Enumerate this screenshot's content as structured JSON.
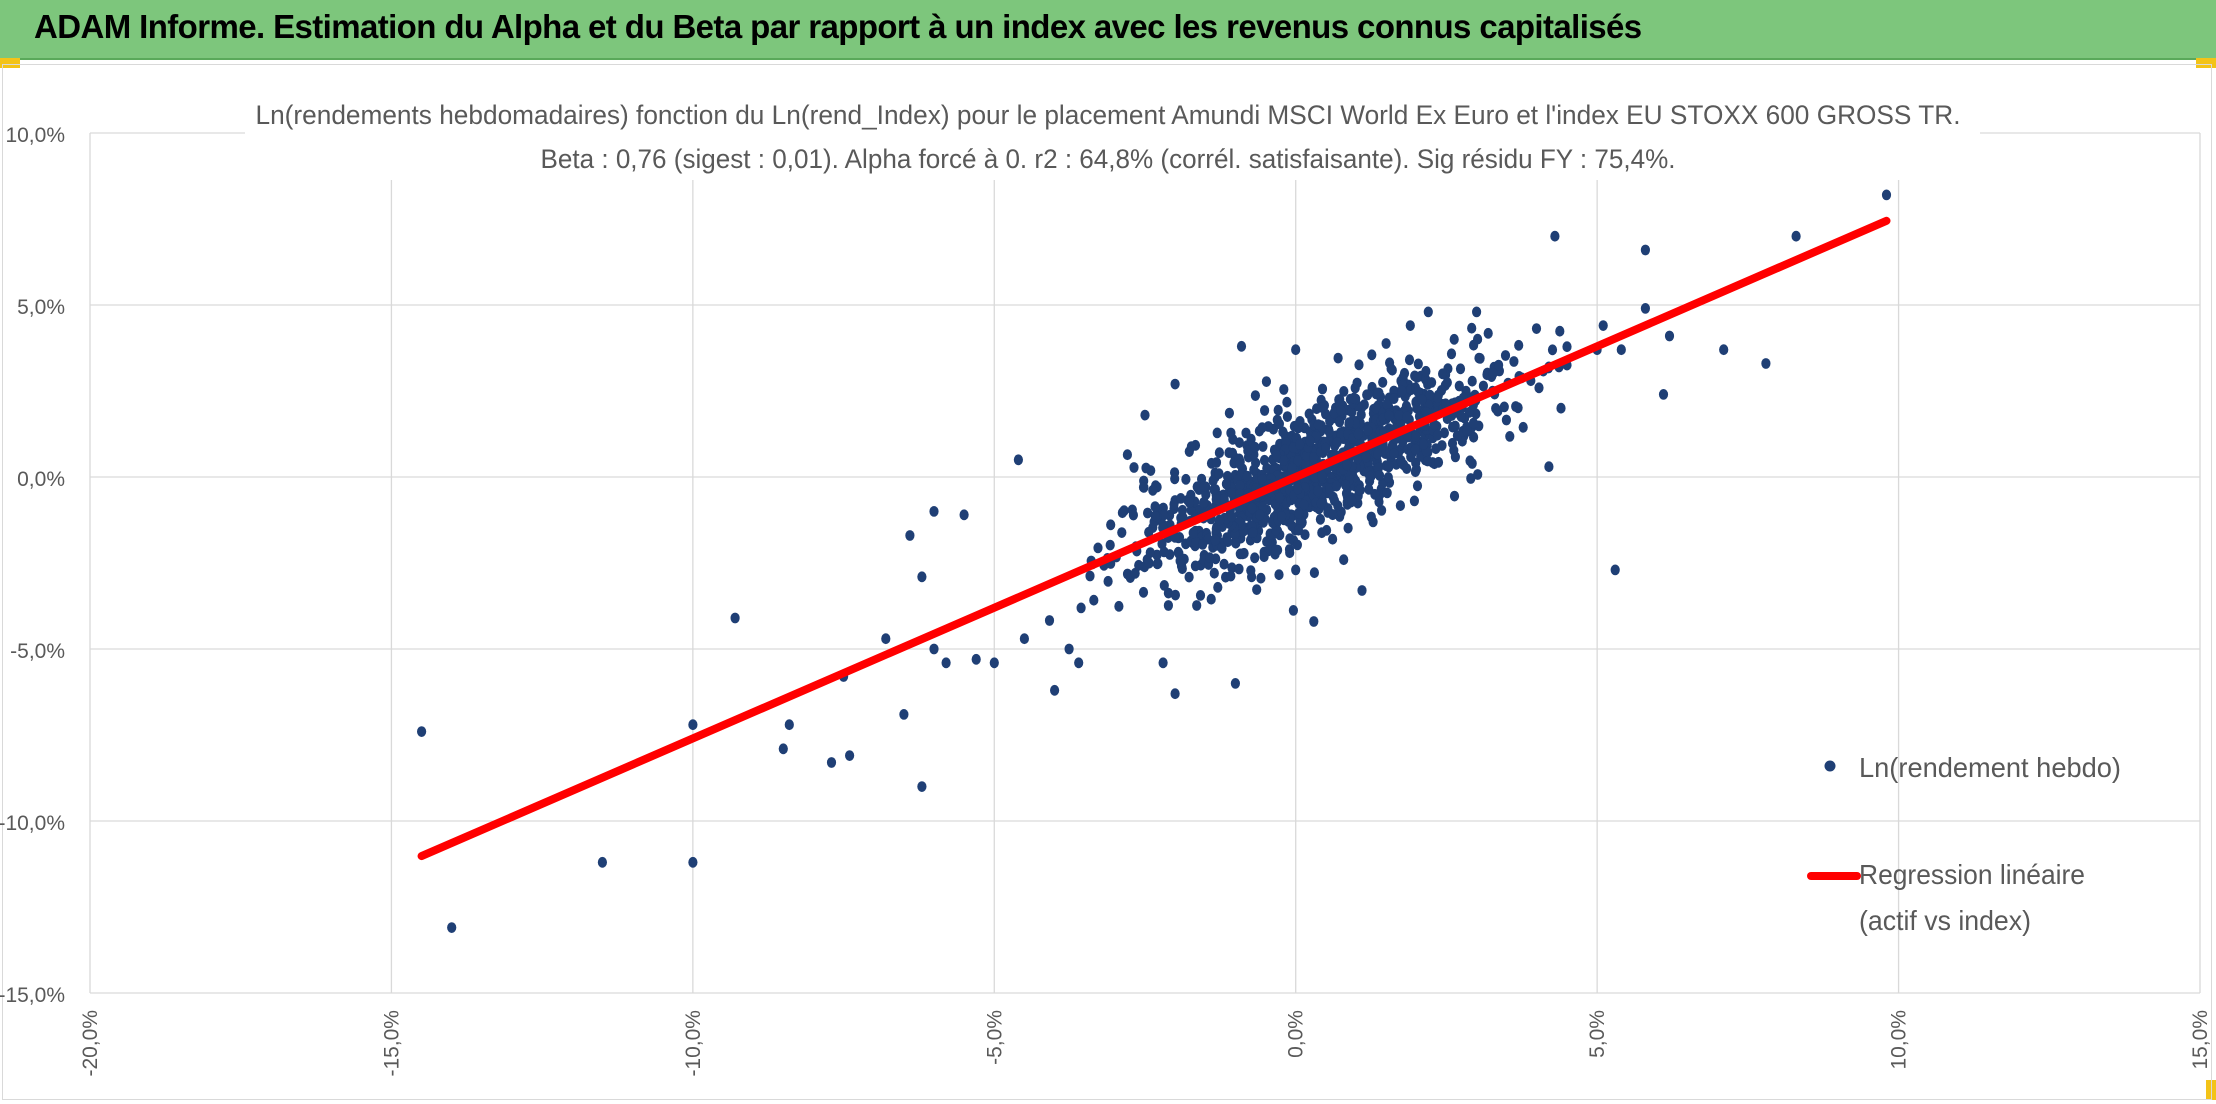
{
  "banner": {
    "title": "ADAM Informe. Estimation du Alpha et du Beta par rapport à un index avec les revenus connus capitalisés"
  },
  "colors": {
    "banner_bg": "#7dc67c",
    "handle": "#f3c318",
    "points": "#1f3f75",
    "regression": "#ff0000",
    "grid": "#d9d9d9"
  },
  "chart_data": {
    "type": "scatter",
    "title": "Ln(rendements hebdomadaires) fonction du Ln(rend_Index) pour le placement Amundi MSCI World Ex Euro et l'index EU STOXX 600 GROSS TR.",
    "subtitle": "Beta : 0,76 (sigest : 0,01). Alpha forcé à 0. r2 : 64,8% (corrél. satisfaisante). Sig résidu FY : 75,4%.",
    "x_axis": {
      "range": [
        -0.2,
        0.15
      ],
      "ticks": [
        -0.2,
        -0.15,
        -0.1,
        -0.05,
        0.0,
        0.05,
        0.1,
        0.15
      ],
      "tick_labels": [
        "-20,0%",
        "-15,0%",
        "-10,0%",
        "-5,0%",
        "0,0%",
        "5,0%",
        "10,0%",
        "15,0%"
      ],
      "grid": true
    },
    "y_axis": {
      "range": [
        -0.15,
        0.1
      ],
      "ticks": [
        0.1,
        0.05,
        0.0,
        -0.05,
        -0.1,
        -0.15
      ],
      "tick_labels": [
        "10,0%",
        "5,0%",
        "0,0%",
        "-5,0%",
        "-10,0%",
        "-15,0%"
      ],
      "grid": true
    },
    "legend": {
      "position": "right",
      "items": [
        {
          "label": "Ln(rendement hebdo)",
          "kind": "marker"
        },
        {
          "label_line1": "Regression linéaire",
          "label_line2": "(actif vs index)",
          "kind": "line"
        }
      ]
    },
    "regression": {
      "beta": 0.76,
      "alpha": 0,
      "x_range": [
        -0.145,
        0.098
      ]
    },
    "series": [
      {
        "name": "Ln(rendement hebdo)",
        "points": [
          [
            0.098,
            0.082
          ],
          [
            0.083,
            0.07
          ],
          [
            0.078,
            0.033
          ],
          [
            0.071,
            0.037
          ],
          [
            0.062,
            0.041
          ],
          [
            0.061,
            0.024
          ],
          [
            0.058,
            0.066
          ],
          [
            0.058,
            0.049
          ],
          [
            0.054,
            0.037
          ],
          [
            0.053,
            -0.027
          ],
          [
            0.051,
            0.044
          ],
          [
            0.05,
            0.037
          ],
          [
            0.043,
            0.07
          ],
          [
            0.042,
            0.032
          ],
          [
            0.044,
            0.02
          ],
          [
            0.039,
            0.028
          ],
          [
            0.042,
            0.003
          ],
          [
            0.03,
            0.048
          ],
          [
            0.022,
            0.048
          ],
          [
            0.019,
            0.044
          ],
          [
            0.011,
            -0.033
          ],
          [
            0.003,
            -0.042
          ],
          [
            0.0,
            0.037
          ],
          [
            -0.009,
            0.038
          ],
          [
            -0.02,
            0.027
          ],
          [
            -0.025,
            0.018
          ],
          [
            -0.046,
            0.005
          ],
          [
            -0.055,
            -0.011
          ],
          [
            -0.06,
            -0.01
          ],
          [
            -0.062,
            -0.029
          ],
          [
            -0.064,
            -0.017
          ],
          [
            -0.065,
            -0.069
          ],
          [
            -0.062,
            -0.09
          ],
          [
            -0.068,
            -0.047
          ],
          [
            -0.074,
            -0.081
          ],
          [
            -0.075,
            -0.058
          ],
          [
            -0.077,
            -0.083
          ],
          [
            -0.084,
            -0.072
          ],
          [
            -0.085,
            -0.079
          ],
          [
            -0.093,
            -0.041
          ],
          [
            -0.1,
            -0.072
          ],
          [
            -0.1,
            -0.112
          ],
          [
            -0.115,
            -0.112
          ],
          [
            -0.14,
            -0.131
          ],
          [
            -0.145,
            -0.074
          ],
          [
            -0.02,
            -0.063
          ],
          [
            -0.01,
            -0.06
          ],
          [
            -0.04,
            -0.062
          ],
          [
            -0.036,
            -0.054
          ],
          [
            -0.022,
            -0.054
          ],
          [
            -0.05,
            -0.054
          ],
          [
            -0.045,
            -0.047
          ],
          [
            -0.058,
            -0.054
          ],
          [
            -0.053,
            -0.053
          ],
          [
            -0.001,
            -0.022
          ],
          [
            0.0,
            -0.027
          ]
        ],
        "cloud": {
          "count": 1200,
          "x_mean": 0.003,
          "x_sd": 0.015,
          "beta": 0.76,
          "resid_sd": 0.0095,
          "seed": 7
        }
      }
    ]
  }
}
